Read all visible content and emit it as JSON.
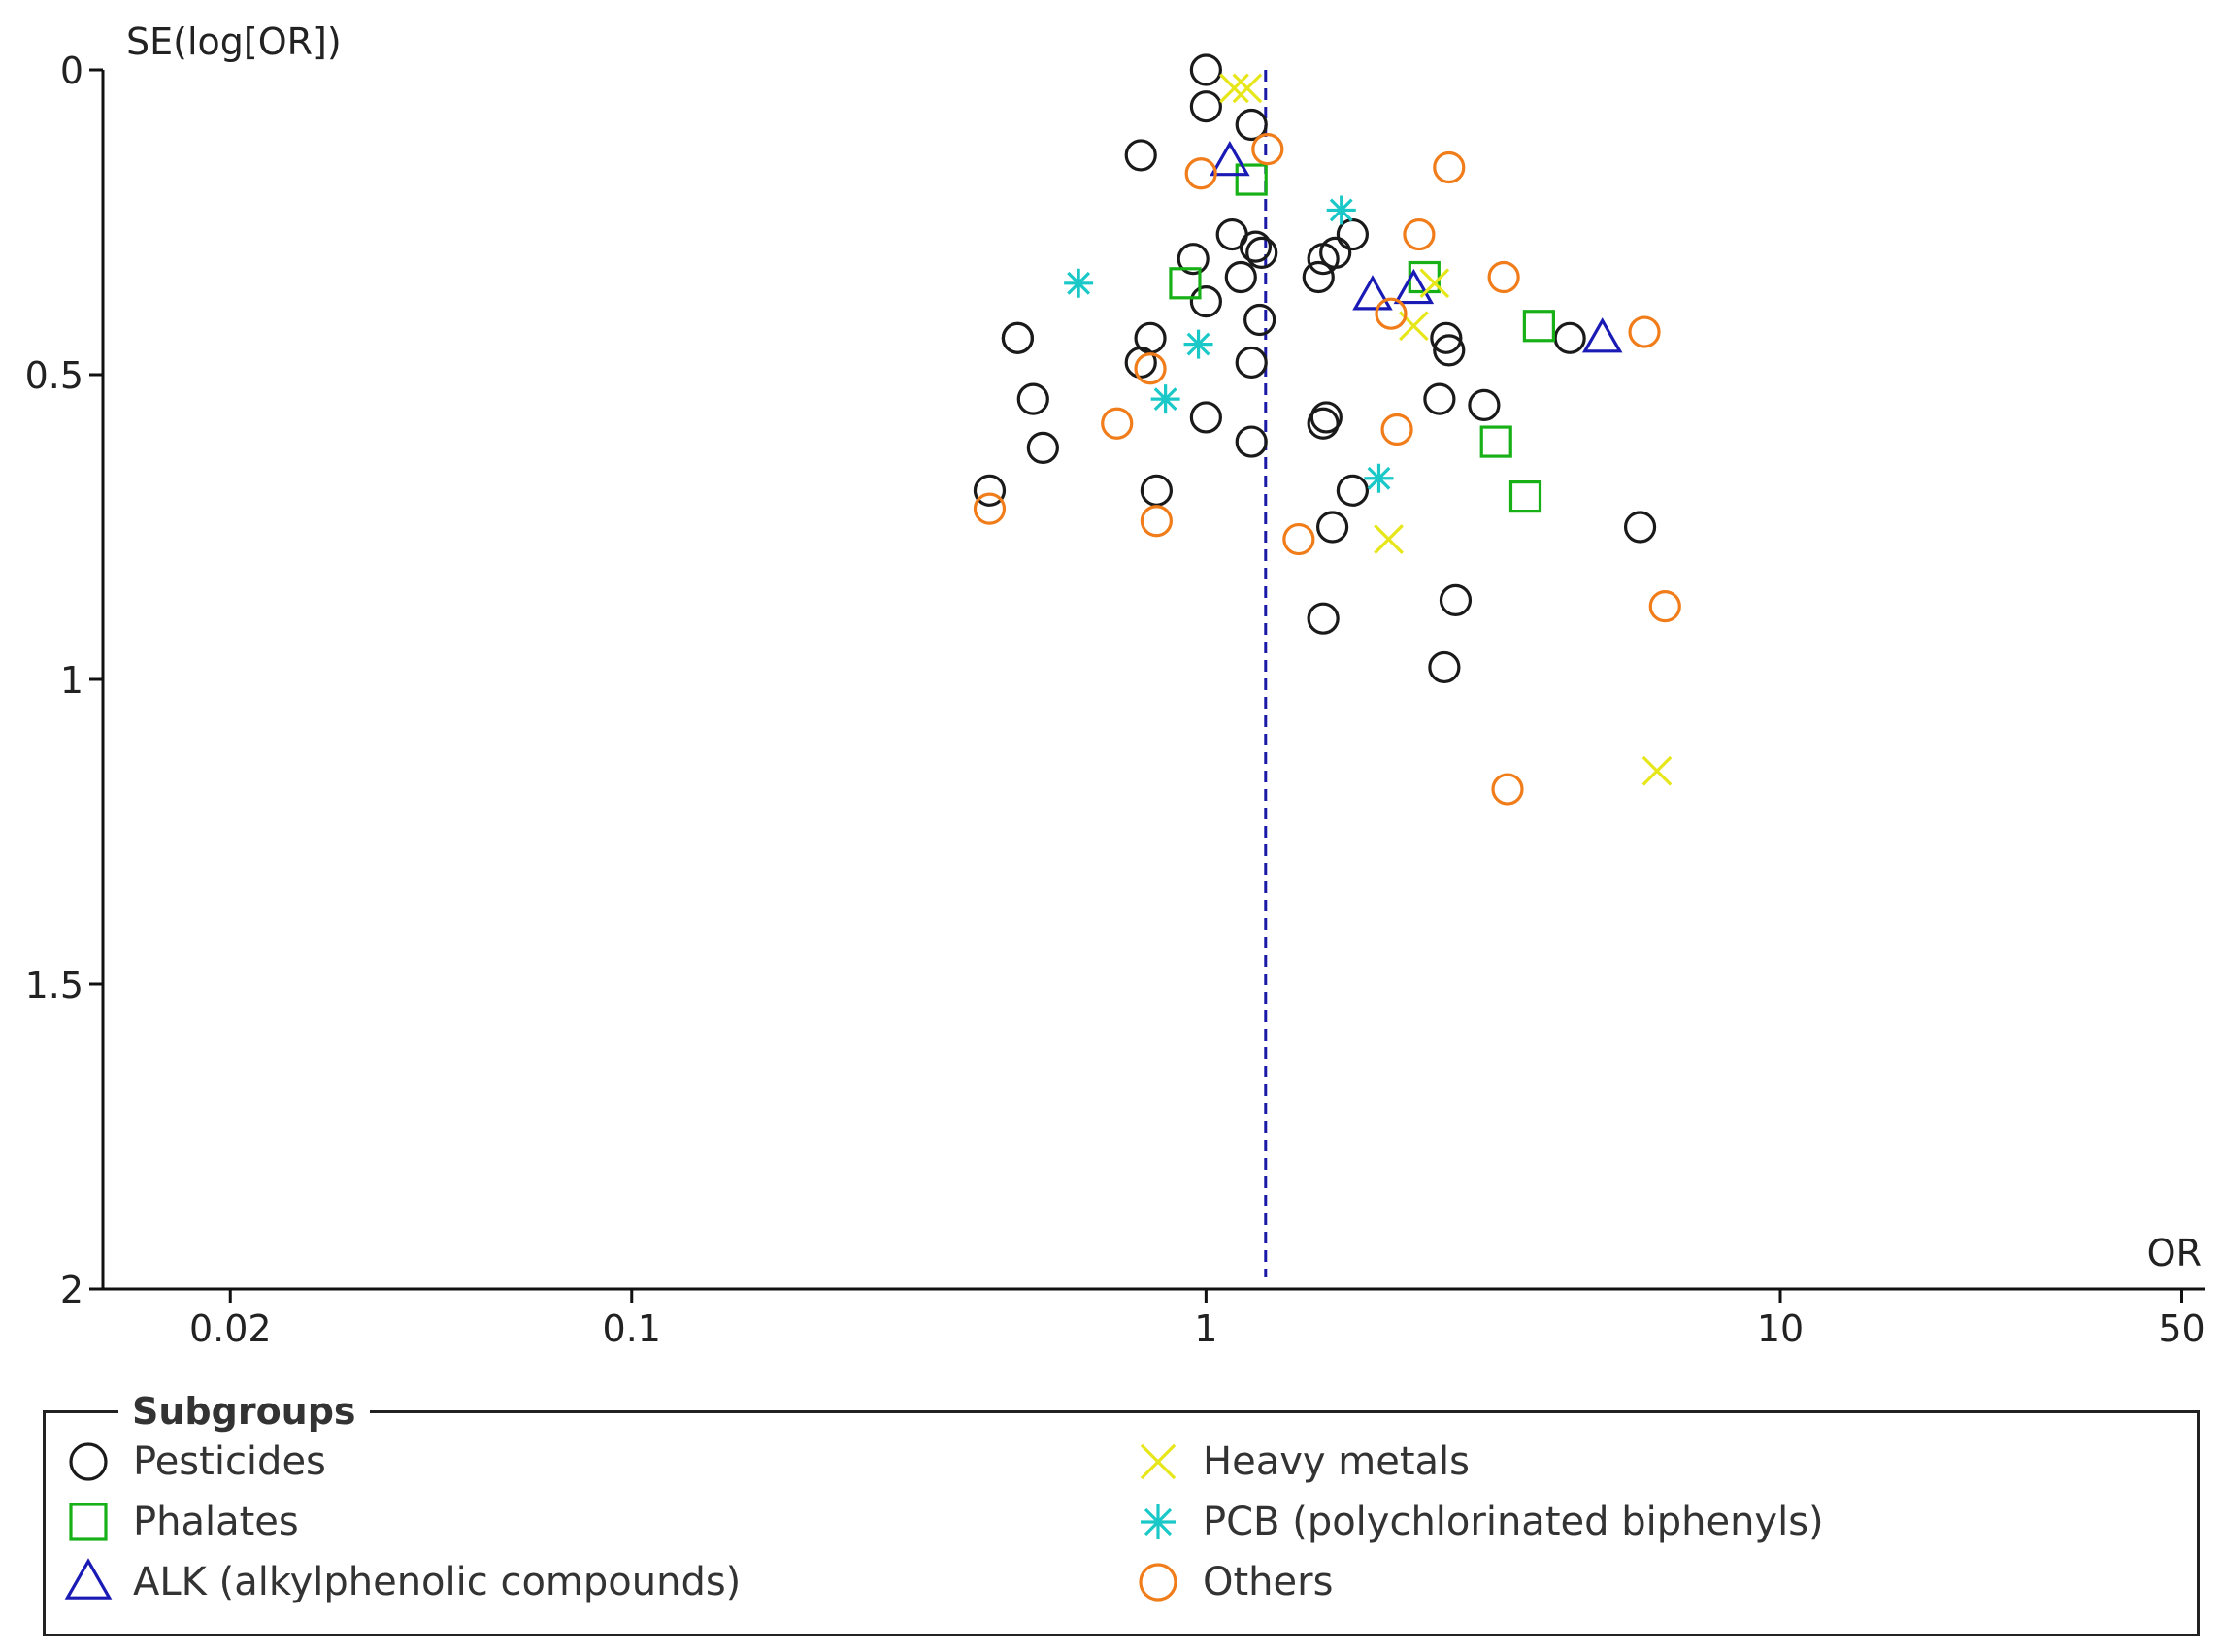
{
  "chart_data": {
    "type": "scatter",
    "title": "",
    "ylabel": "SE(log[OR])",
    "xlabel": "OR",
    "x_scale": "log",
    "xlim": [
      0.012,
      55
    ],
    "ylim": [
      0,
      2
    ],
    "y_inverted": true,
    "x_ticks": [
      {
        "value": 0.02,
        "label": "0.02"
      },
      {
        "value": 0.1,
        "label": "0.1"
      },
      {
        "value": 1,
        "label": "1"
      },
      {
        "value": 10,
        "label": "10"
      },
      {
        "value": 50,
        "label": "50"
      }
    ],
    "y_ticks": [
      {
        "value": 0,
        "label": "0"
      },
      {
        "value": 0.5,
        "label": "0.5"
      },
      {
        "value": 1,
        "label": "1"
      },
      {
        "value": 1.5,
        "label": "1.5"
      },
      {
        "value": 2,
        "label": "2"
      }
    ],
    "pooled_estimate_line": {
      "or": 1.27,
      "color": "#1a1aa6",
      "style": "dashed"
    },
    "legend_title": "Subgroups",
    "series": [
      {
        "name": "Pesticides",
        "marker": "circle",
        "color": "#1a1a1a",
        "points": [
          [
            1.0,
            0.0
          ],
          [
            1.0,
            0.06
          ],
          [
            1.2,
            0.09
          ],
          [
            0.77,
            0.14
          ],
          [
            1.11,
            0.27
          ],
          [
            0.95,
            0.31
          ],
          [
            1.15,
            0.34
          ],
          [
            1.25,
            0.3
          ],
          [
            1.22,
            0.29
          ],
          [
            1.0,
            0.38
          ],
          [
            1.24,
            0.41
          ],
          [
            0.47,
            0.44
          ],
          [
            0.47,
            0.44
          ],
          [
            0.8,
            0.44
          ],
          [
            0.77,
            0.48
          ],
          [
            1.2,
            0.48
          ],
          [
            0.5,
            0.54
          ],
          [
            1.0,
            0.57
          ],
          [
            0.52,
            0.62
          ],
          [
            1.2,
            0.61
          ],
          [
            0.42,
            0.69
          ],
          [
            0.82,
            0.69
          ],
          [
            1.8,
            0.27
          ],
          [
            1.68,
            0.3
          ],
          [
            1.6,
            0.31
          ],
          [
            1.57,
            0.34
          ],
          [
            1.62,
            0.57
          ],
          [
            1.6,
            0.58
          ],
          [
            1.8,
            0.69
          ],
          [
            1.66,
            0.75
          ],
          [
            1.6,
            0.9
          ],
          [
            2.62,
            0.44
          ],
          [
            2.65,
            0.46
          ],
          [
            2.55,
            0.54
          ],
          [
            3.05,
            0.55
          ],
          [
            4.3,
            0.44
          ],
          [
            5.7,
            0.75
          ],
          [
            2.72,
            0.87
          ],
          [
            2.6,
            0.98
          ]
        ]
      },
      {
        "name": "Phalates",
        "marker": "square",
        "color": "#17b117",
        "points": [
          [
            1.2,
            0.18
          ],
          [
            0.92,
            0.35
          ],
          [
            2.4,
            0.34
          ],
          [
            3.8,
            0.42
          ],
          [
            3.2,
            0.61
          ],
          [
            3.6,
            0.7
          ]
        ]
      },
      {
        "name": "ALK (alkylphenolic compounds)",
        "marker": "triangle",
        "color": "#1a1ab5",
        "points": [
          [
            1.1,
            0.15
          ],
          [
            1.95,
            0.37
          ],
          [
            2.3,
            0.36
          ],
          [
            4.9,
            0.44
          ]
        ]
      },
      {
        "name": "Heavy metals",
        "marker": "x",
        "color": "#e6e61a",
        "points": [
          [
            1.12,
            0.03
          ],
          [
            1.18,
            0.03
          ],
          [
            2.5,
            0.35
          ],
          [
            2.3,
            0.42
          ],
          [
            2.08,
            0.77
          ],
          [
            6.1,
            1.15
          ]
        ]
      },
      {
        "name": "PCB (polychlorinated biphenyls)",
        "marker": "asterisk",
        "color": "#1ac8c8",
        "points": [
          [
            0.6,
            0.35
          ],
          [
            1.72,
            0.23
          ],
          [
            0.97,
            0.45
          ],
          [
            0.85,
            0.54
          ],
          [
            2.0,
            0.67
          ]
        ]
      },
      {
        "name": "Others",
        "marker": "circle",
        "color": "#f07c1a",
        "points": [
          [
            1.28,
            0.13
          ],
          [
            0.98,
            0.17
          ],
          [
            2.65,
            0.16
          ],
          [
            2.35,
            0.27
          ],
          [
            3.3,
            0.34
          ],
          [
            2.1,
            0.4
          ],
          [
            5.8,
            0.43
          ],
          [
            0.8,
            0.49
          ],
          [
            0.7,
            0.58
          ],
          [
            2.15,
            0.59
          ],
          [
            0.82,
            0.74
          ],
          [
            0.42,
            0.72
          ],
          [
            1.45,
            0.77
          ],
          [
            6.3,
            0.88
          ],
          [
            3.35,
            1.18
          ]
        ]
      }
    ]
  },
  "legend": {
    "title": "Subgroups",
    "items": [
      {
        "label": "Pesticides",
        "marker": "circle",
        "color": "#1a1a1a"
      },
      {
        "label": "Phalates",
        "marker": "square",
        "color": "#17b117"
      },
      {
        "label": "ALK (alkylphenolic compounds)",
        "marker": "triangle",
        "color": "#1a1ab5"
      },
      {
        "label": "Heavy metals",
        "marker": "x",
        "color": "#e6e61a"
      },
      {
        "label": "PCB (polychlorinated biphenyls)",
        "marker": "asterisk",
        "color": "#1ac8c8"
      },
      {
        "label": "Others",
        "marker": "circle",
        "color": "#f07c1a"
      }
    ]
  }
}
